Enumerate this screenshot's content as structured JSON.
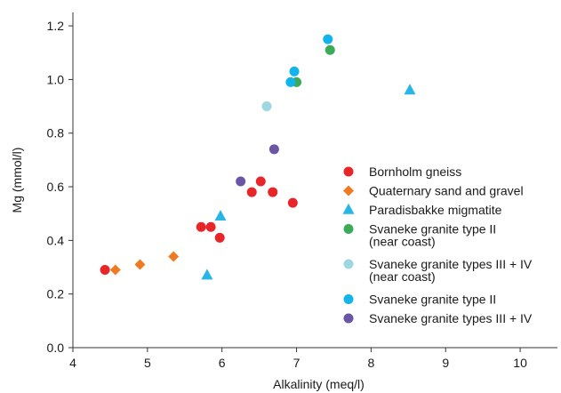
{
  "chart_data": {
    "type": "scatter",
    "xlabel": "Alkalinity (meq/l)",
    "ylabel": "Mg (mmol/l)",
    "xlim": [
      4,
      10.5
    ],
    "ylim": [
      0.0,
      1.25
    ],
    "x_ticks": [
      "4",
      "5",
      "6",
      "7",
      "8",
      "9",
      "10"
    ],
    "y_ticks": [
      "0.0",
      "0.2",
      "0.4",
      "0.6",
      "0.8",
      "1.0",
      "1.2"
    ],
    "grid": false,
    "legend_position": "right",
    "series": [
      {
        "name": [
          "Bornholm gneiss"
        ],
        "marker": "circle",
        "color": "#e8262a",
        "points": [
          [
            4.43,
            0.29
          ],
          [
            5.72,
            0.45
          ],
          [
            5.85,
            0.45
          ],
          [
            5.97,
            0.41
          ],
          [
            6.4,
            0.58
          ],
          [
            6.52,
            0.62
          ],
          [
            6.68,
            0.58
          ],
          [
            6.95,
            0.54
          ]
        ]
      },
      {
        "name": [
          "Quaternary sand and gravel"
        ],
        "marker": "diamond",
        "color": "#f07a22",
        "points": [
          [
            4.57,
            0.29
          ],
          [
            4.9,
            0.31
          ],
          [
            5.35,
            0.34
          ]
        ]
      },
      {
        "name": [
          "Paradisbakke migmatite"
        ],
        "marker": "triangle",
        "color": "#27b6e6",
        "points": [
          [
            5.8,
            0.27
          ],
          [
            5.98,
            0.49
          ],
          [
            8.52,
            0.96
          ]
        ]
      },
      {
        "name": [
          "Svaneke granite type II",
          "(near coast)"
        ],
        "marker": "circle",
        "color": "#3bab57",
        "points": [
          [
            7.0,
            0.99
          ],
          [
            7.45,
            1.11
          ]
        ]
      },
      {
        "name": [
          "Svaneke granite types III + IV",
          "(near coast)"
        ],
        "marker": "circle",
        "color": "#9ed7e2",
        "points": [
          [
            6.6,
            0.9
          ]
        ]
      },
      {
        "name": [
          "Svaneke granite type II"
        ],
        "marker": "circle",
        "color": "#13b3eb",
        "points": [
          [
            6.92,
            0.99
          ],
          [
            6.97,
            1.03
          ],
          [
            7.42,
            1.15
          ]
        ]
      },
      {
        "name": [
          "Svaneke granite types III + IV"
        ],
        "marker": "circle",
        "color": "#6a56a5",
        "points": [
          [
            6.25,
            0.62
          ],
          [
            6.7,
            0.74
          ]
        ]
      }
    ]
  }
}
